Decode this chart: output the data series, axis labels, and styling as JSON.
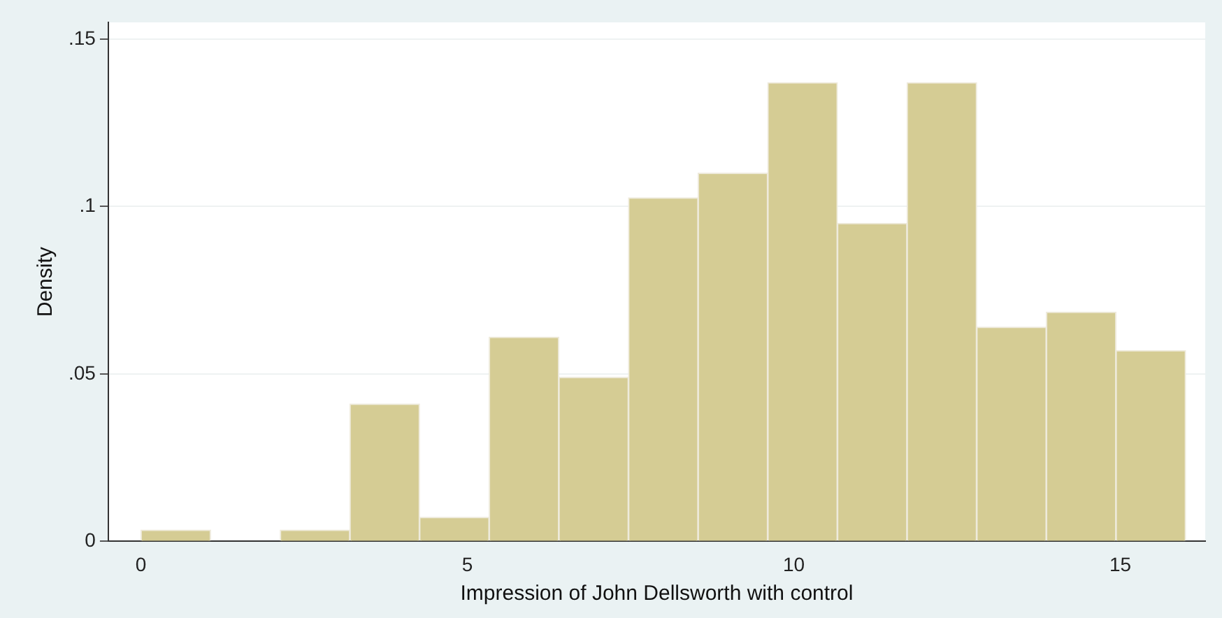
{
  "chart_data": {
    "type": "histogram",
    "xlabel": "Impression of John Dellsworth with control",
    "ylabel": "Density",
    "bins": [
      0,
      1.067,
      2.133,
      3.2,
      4.267,
      5.333,
      6.4,
      7.467,
      8.533,
      9.6,
      10.667,
      11.733,
      12.8,
      13.867,
      14.933,
      16
    ],
    "values": [
      0.0034,
      0,
      0.0034,
      0.041,
      0.0072,
      0.061,
      0.049,
      0.1026,
      0.11,
      0.137,
      0.095,
      0.137,
      0.064,
      0.0685,
      0.057
    ],
    "color": "#d5cc94",
    "xlim": [
      -0.5,
      16.3
    ],
    "xticks": [
      0,
      5,
      10,
      15
    ],
    "ylim": [
      0,
      0.155
    ],
    "yticks": [
      0,
      {
        "value": 0.05,
        "label": ".05"
      },
      {
        "value": 0.1,
        "label": ".1"
      },
      {
        "value": 0.15,
        "label": ".15"
      }
    ],
    "grid": "y",
    "legend": false
  }
}
